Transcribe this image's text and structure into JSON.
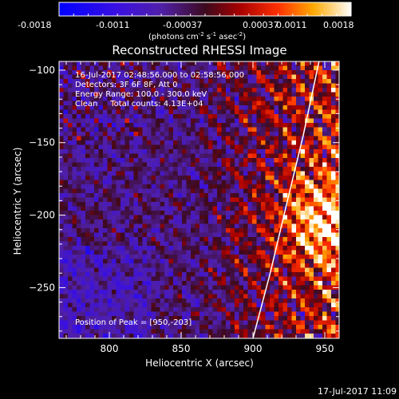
{
  "colorbar": {
    "ticks": [
      "-0.0018",
      "-0.0011",
      "-0.00037",
      "0.00037",
      "0.0011",
      "0.0018"
    ],
    "unit_label_parts": [
      "(photons cm",
      "-2",
      " s",
      "-1",
      " asec",
      "-2",
      ")"
    ]
  },
  "chart_data": {
    "type": "heatmap",
    "title": "Reconstructed RHESSI Image",
    "xlabel": "Heliocentric X (arcsec)",
    "ylabel": "Heliocentric Y (arcsec)",
    "xlim": [
      765,
      960
    ],
    "ylim": [
      -285,
      -94
    ],
    "x_ticks": [
      800,
      850,
      900,
      950
    ],
    "y_ticks": [
      -100,
      -150,
      -200,
      -250
    ],
    "x_tick_labels": [
      "800",
      "850",
      "900",
      "950"
    ],
    "y_tick_labels": [
      "−100",
      "−150",
      "−200",
      "−250"
    ],
    "colorscale_range": [
      -0.0018,
      0.0018
    ],
    "annotations": [
      "16-Jul-2017 02:48:56.000 to 02:58:56.000",
      "Detectors: 3F 6F 8F, Att 0",
      "Energy Range: 100.0 - 300.0 keV",
      "Clean     Total counts: 4.13E+04"
    ],
    "peak_label": "Position of Peak = [950,-203]",
    "peak_position": [
      950,
      -203
    ],
    "limb": [
      [
        900,
        -285
      ],
      [
        912,
        -240
      ],
      [
        924,
        -190
      ],
      [
        935,
        -145
      ],
      [
        946,
        -94
      ]
    ]
  },
  "footer_date": "17-Jul-2017 11:09"
}
